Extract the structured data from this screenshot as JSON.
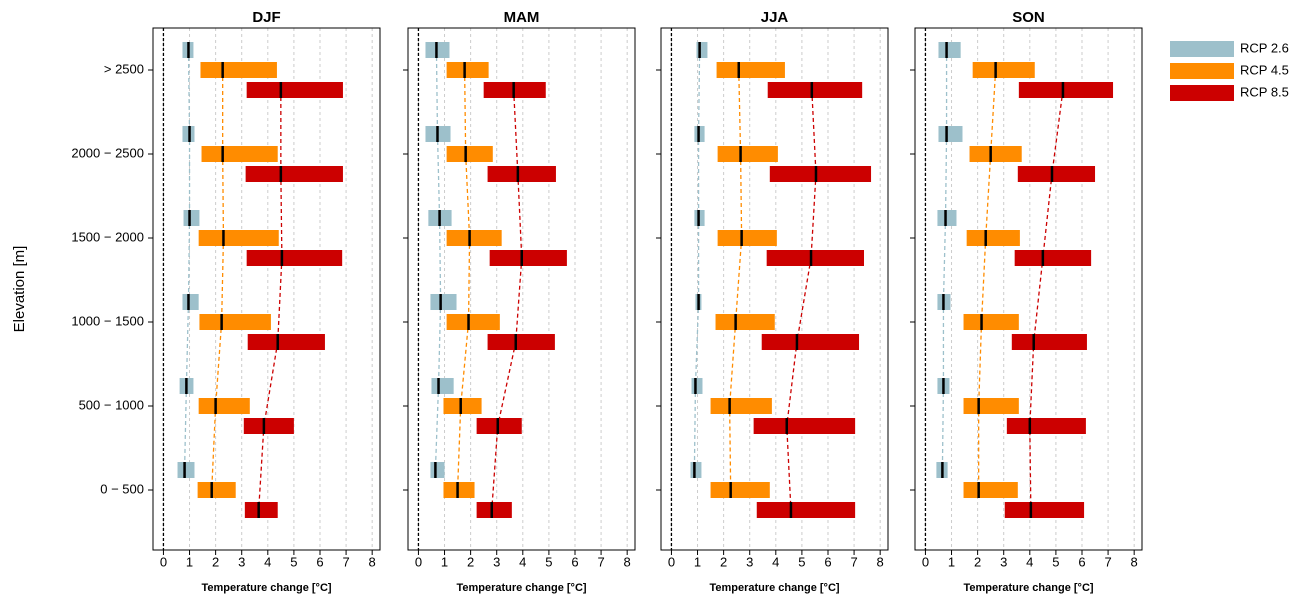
{
  "chart_data": [
    {
      "type": "range",
      "title": "DJF",
      "xlabel": "Temperature change [°C]",
      "ylabel": "Elevation [m]",
      "categories": [
        "> 2500",
        "2000 − 2500",
        "1500 − 2000",
        "1000 − 1500",
        "500 − 1000",
        "0 − 500"
      ],
      "xlim": [
        -0.4,
        8.3
      ],
      "xticks": [
        0,
        1,
        2,
        3,
        4,
        5,
        6,
        7,
        8
      ],
      "grid": true,
      "legend": "outside right",
      "series": [
        {
          "name": "RCP 2.6",
          "color": "#9dc0cb",
          "low": [
            0.73,
            0.73,
            0.77,
            0.73,
            0.62,
            0.54
          ],
          "median": [
            0.96,
            1.0,
            1.0,
            0.96,
            0.88,
            0.81
          ],
          "high": [
            1.15,
            1.19,
            1.38,
            1.35,
            1.15,
            1.19
          ]
        },
        {
          "name": "RCP 4.5",
          "color": "#ff8c00",
          "low": [
            1.42,
            1.46,
            1.35,
            1.38,
            1.35,
            1.31
          ],
          "median": [
            2.27,
            2.27,
            2.3,
            2.23,
            2.0,
            1.85
          ],
          "high": [
            4.35,
            4.38,
            4.42,
            4.12,
            3.31,
            2.77
          ]
        },
        {
          "name": "RCP 8.5",
          "color": "#cc0000",
          "low": [
            3.19,
            3.15,
            3.19,
            3.23,
            3.08,
            3.12
          ],
          "median": [
            4.5,
            4.5,
            4.54,
            4.38,
            3.85,
            3.65
          ],
          "high": [
            6.88,
            6.88,
            6.85,
            6.19,
            5.0,
            4.38
          ]
        }
      ]
    },
    {
      "type": "range",
      "title": "MAM",
      "xlabel": "Temperature change [°C]",
      "xlim": [
        -0.4,
        8.3
      ],
      "xticks": [
        0,
        1,
        2,
        3,
        4,
        5,
        6,
        7,
        8
      ],
      "grid": true,
      "series": [
        {
          "color": "#9dc0cb",
          "low": [
            0.27,
            0.27,
            0.38,
            0.46,
            0.5,
            0.46
          ],
          "median": [
            0.69,
            0.73,
            0.81,
            0.85,
            0.77,
            0.65
          ],
          "high": [
            1.19,
            1.23,
            1.27,
            1.46,
            1.35,
            1.0
          ]
        },
        {
          "color": "#ff8c00",
          "low": [
            1.08,
            1.08,
            1.08,
            1.08,
            0.96,
            0.96
          ],
          "median": [
            1.77,
            1.81,
            1.96,
            1.92,
            1.62,
            1.5
          ],
          "high": [
            2.69,
            2.85,
            3.19,
            3.12,
            2.42,
            2.15
          ]
        },
        {
          "color": "#cc0000",
          "low": [
            2.5,
            2.65,
            2.73,
            2.65,
            2.23,
            2.23
          ],
          "median": [
            3.65,
            3.81,
            3.96,
            3.73,
            3.04,
            2.81
          ],
          "high": [
            4.88,
            5.27,
            5.69,
            5.23,
            3.96,
            3.58
          ]
        }
      ]
    },
    {
      "type": "range",
      "title": "JJA",
      "xlabel": "Temperature change [°C]",
      "xlim": [
        -0.4,
        8.3
      ],
      "xticks": [
        0,
        1,
        2,
        3,
        4,
        5,
        6,
        7,
        8
      ],
      "grid": true,
      "series": [
        {
          "color": "#9dc0cb",
          "low": [
            0.96,
            0.88,
            0.88,
            0.92,
            0.77,
            0.73
          ],
          "median": [
            1.08,
            1.04,
            1.04,
            1.04,
            0.92,
            0.88
          ],
          "high": [
            1.38,
            1.27,
            1.27,
            1.15,
            1.19,
            1.15
          ]
        },
        {
          "color": "#ff8c00",
          "low": [
            1.73,
            1.77,
            1.77,
            1.69,
            1.5,
            1.5
          ],
          "median": [
            2.58,
            2.65,
            2.69,
            2.46,
            2.23,
            2.27
          ],
          "high": [
            4.35,
            4.08,
            4.04,
            3.96,
            3.85,
            3.77
          ]
        },
        {
          "color": "#cc0000",
          "low": [
            3.69,
            3.77,
            3.65,
            3.46,
            3.15,
            3.27
          ],
          "median": [
            5.38,
            5.54,
            5.35,
            4.81,
            4.42,
            4.58
          ],
          "high": [
            7.31,
            7.65,
            7.38,
            7.19,
            7.04,
            7.04
          ]
        }
      ]
    },
    {
      "type": "range",
      "title": "SON",
      "xlabel": "Temperature change [°C]",
      "xlim": [
        -0.4,
        8.3
      ],
      "xticks": [
        0,
        1,
        2,
        3,
        4,
        5,
        6,
        7,
        8
      ],
      "grid": true,
      "series": [
        {
          "color": "#9dc0cb",
          "low": [
            0.5,
            0.5,
            0.46,
            0.46,
            0.46,
            0.42
          ],
          "median": [
            0.81,
            0.81,
            0.77,
            0.69,
            0.69,
            0.65
          ],
          "high": [
            1.35,
            1.42,
            1.19,
            0.96,
            0.92,
            0.85
          ]
        },
        {
          "color": "#ff8c00",
          "low": [
            1.81,
            1.69,
            1.58,
            1.46,
            1.46,
            1.46
          ],
          "median": [
            2.69,
            2.5,
            2.31,
            2.15,
            2.04,
            2.04
          ],
          "high": [
            4.19,
            3.69,
            3.62,
            3.58,
            3.58,
            3.54
          ]
        },
        {
          "color": "#cc0000",
          "low": [
            3.58,
            3.54,
            3.42,
            3.31,
            3.12,
            3.04
          ],
          "median": [
            5.27,
            4.85,
            4.5,
            4.15,
            4.0,
            4.04
          ],
          "high": [
            7.19,
            6.5,
            6.35,
            6.19,
            6.15,
            6.08
          ]
        }
      ]
    }
  ]
}
